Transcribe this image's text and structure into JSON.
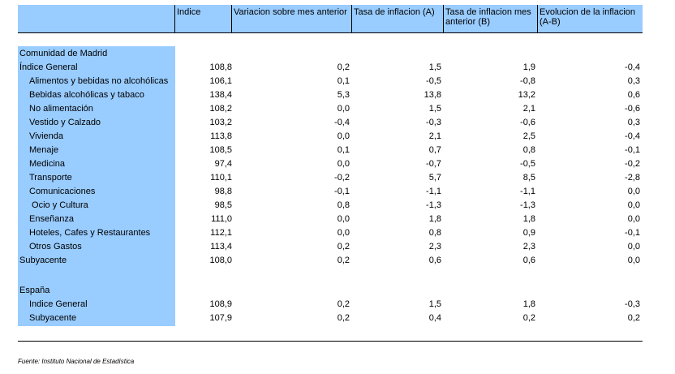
{
  "header": {
    "col0": "",
    "col1": "Indice",
    "col2": "Variacion sobre mes anterior",
    "col3": "Tasa de inflacion (A)",
    "col4": "Tasa de inflacion mes anterior (B)",
    "col5": "Evolucion de la inflacion (A-B)"
  },
  "madrid": {
    "title": "Comunidad de Madrid",
    "rows": [
      {
        "label": "Índice General",
        "indent": false,
        "v": [
          "108,8",
          "0,2",
          "1,5",
          "1,9",
          "-0,4"
        ]
      },
      {
        "label": "Alimentos y bebidas no alcohólicas",
        "indent": true,
        "v": [
          "106,1",
          "0,1",
          "-0,5",
          "-0,8",
          "0,3"
        ]
      },
      {
        "label": "Bebidas alcohólicas y tabaco",
        "indent": true,
        "v": [
          "138,4",
          "5,3",
          "13,8",
          "13,2",
          "0,6"
        ]
      },
      {
        "label": "No alimentación",
        "indent": true,
        "v": [
          "108,2",
          "0,0",
          "1,5",
          "2,1",
          "-0,6"
        ]
      },
      {
        "label": "Vestido y Calzado",
        "indent": true,
        "v": [
          "103,2",
          "-0,4",
          "-0,3",
          "-0,6",
          "0,3"
        ]
      },
      {
        "label": "Vivienda",
        "indent": true,
        "v": [
          "113,8",
          "0,0",
          "2,1",
          "2,5",
          "-0,4"
        ]
      },
      {
        "label": "Menaje",
        "indent": true,
        "v": [
          "108,5",
          "0,1",
          "0,7",
          "0,8",
          "-0,1"
        ]
      },
      {
        "label": "Medicina",
        "indent": true,
        "v": [
          "97,4",
          "0,0",
          "-0,7",
          "-0,5",
          "-0,2"
        ]
      },
      {
        "label": "Transporte",
        "indent": true,
        "v": [
          "110,1",
          "-0,2",
          "5,7",
          "8,5",
          "-2,8"
        ]
      },
      {
        "label": "Comunicaciones",
        "indent": true,
        "v": [
          "98,8",
          "-0,1",
          "-1,1",
          "-1,1",
          "0,0"
        ]
      },
      {
        "label": " Ocio y Cultura",
        "indent": true,
        "v": [
          "98,5",
          "0,8",
          "-1,3",
          "-1,3",
          "0,0"
        ]
      },
      {
        "label": "Enseñanza",
        "indent": true,
        "v": [
          "111,0",
          "0,0",
          "1,8",
          "1,8",
          "0,0"
        ]
      },
      {
        "label": "Hoteles, Cafes y Restaurantes",
        "indent": true,
        "v": [
          "112,1",
          "0,0",
          "0,8",
          "0,9",
          "-0,1"
        ]
      },
      {
        "label": "Otros Gastos",
        "indent": true,
        "v": [
          "113,4",
          "0,2",
          "2,3",
          "2,3",
          "0,0"
        ]
      },
      {
        "label": "Subyacente",
        "indent": false,
        "v": [
          "108,0",
          "0,2",
          "0,6",
          "0,6",
          "0,0"
        ]
      }
    ]
  },
  "espana": {
    "title": "España",
    "rows": [
      {
        "label": "Indice General",
        "indent": true,
        "v": [
          "108,9",
          "0,2",
          "1,5",
          "1,8",
          "-0,3"
        ]
      },
      {
        "label": "Subyacente",
        "indent": true,
        "v": [
          "107,9",
          "0,2",
          "0,4",
          "0,2",
          "0,2"
        ]
      }
    ]
  },
  "footer": "Fuente: Instituto Nacional de Estadística"
}
